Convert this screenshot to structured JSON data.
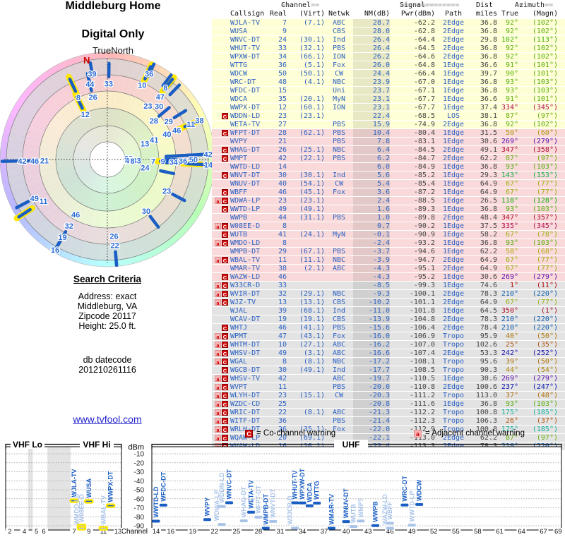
{
  "radar": {
    "title": "Middleburg Home",
    "subtitle": "Digital Only",
    "north_label": "TrueNorth",
    "magnetic_north_label": "N"
  },
  "criteria": {
    "heading": "Search Criteria",
    "lines": [
      "Address: exact",
      "Middleburg, VA",
      "Zipcode 20117",
      "Height: 25.0 ft."
    ],
    "datecode_label": "db datecode",
    "datecode": "201210261116",
    "link": "www.tvfool.com"
  },
  "table": {
    "group_headers": {
      "channel": "==Channel==",
      "signal": "========Signal========",
      "dist": "Dist",
      "azimuth": "==Azimuth=="
    },
    "columns": {
      "callsign": "Callsign",
      "real": "Real",
      "virt": "(Virt)",
      "netwk": "Netwk",
      "nm": "NM(dB)",
      "pwr": "Pwr(dBm)",
      "path": "Path",
      "miles": "miles",
      "true": "True",
      "magn": "(Magn)"
    }
  },
  "legend": {
    "c_symbol": "C",
    "c_label": "= Co-channel warning",
    "a_symbol": "a",
    "a_label": "= Adjacent channel warning"
  },
  "chart": {
    "dbm_axis_label": "dBm",
    "channel_axis_label": "Channel",
    "band_labels": [
      "VHF Lo",
      "VHF Hi",
      "UHF"
    ],
    "dbm_ticks": [
      -10,
      -20,
      -30,
      -40,
      -50,
      -60,
      -70,
      -80,
      -90
    ],
    "vhf_ticks": [
      2,
      4,
      5,
      6,
      7,
      9,
      11,
      13
    ],
    "uhf_ticks": [
      14,
      16,
      19,
      22,
      25,
      28,
      31,
      34,
      37,
      40,
      43,
      46,
      49,
      52,
      55,
      58,
      61,
      64,
      67,
      69
    ]
  },
  "colors": {
    "station_blue": "#1a5ec4",
    "station_light_blue": "#a9c3e8",
    "vhf_highlight_yellow": "#ffe700",
    "warn_c_red": "#d40f0f",
    "warn_a_pink": "#f7b4b4",
    "row_strong_yellow": "#ffffd5",
    "row_mid_pink": "#f9d9d9",
    "row_weak_gray": "#e3e3e3",
    "link_blue": "#2222cc"
  },
  "chart_data": {
    "type": "scatter",
    "title": "",
    "xlabel": "Channel",
    "ylabel": "dBm",
    "ylim": [
      -90,
      -10
    ],
    "stations": [
      {
        "cs": "WJLA-TV",
        "real": 7,
        "virt": "(7.1)",
        "net": "ABC",
        "nm": 28.7,
        "pwr": -62.2,
        "path": "2Edge",
        "mi": 36.8,
        "az": 92,
        "magn": 102,
        "warn": ""
      },
      {
        "cs": "WUSA",
        "real": 9,
        "virt": "",
        "net": "CBS",
        "nm": 28.0,
        "pwr": -62.8,
        "path": "2Edge",
        "mi": 36.8,
        "az": 92,
        "magn": 102,
        "warn": ""
      },
      {
        "cs": "WNVC-DT",
        "real": 24,
        "virt": "(30.1)",
        "net": "Ind",
        "nm": 26.4,
        "pwr": -64.4,
        "path": "2Edge",
        "mi": 29.8,
        "az": 102,
        "magn": 113,
        "warn": ""
      },
      {
        "cs": "WHUT-TV",
        "real": 33,
        "virt": "(32.1)",
        "net": "PBS",
        "nm": 26.4,
        "pwr": -64.5,
        "path": "2Edge",
        "mi": 36.8,
        "az": 92,
        "magn": 102,
        "warn": ""
      },
      {
        "cs": "WPXW-DT",
        "real": 34,
        "virt": "(66.1)",
        "net": "ION",
        "nm": 26.2,
        "pwr": -64.6,
        "path": "2Edge",
        "mi": 36.8,
        "az": 92,
        "magn": 102,
        "warn": ""
      },
      {
        "cs": "WTTG",
        "real": 36,
        "virt": "(5.1)",
        "net": "Fox",
        "nm": 26.0,
        "pwr": -64.8,
        "path": "1Edge",
        "mi": 36.6,
        "az": 91,
        "magn": 101,
        "warn": ""
      },
      {
        "cs": "WDCW",
        "real": 50,
        "virt": "(50.1)",
        "net": "CW",
        "nm": 24.4,
        "pwr": -66.4,
        "path": "1Edge",
        "mi": 39.7,
        "az": 90,
        "magn": 101,
        "warn": ""
      },
      {
        "cs": "WRC-DT",
        "real": 48,
        "virt": "(4.1)",
        "net": "NBC",
        "nm": 23.9,
        "pwr": -67.0,
        "path": "1Edge",
        "mi": 36.8,
        "az": 93,
        "magn": 103,
        "warn": ""
      },
      {
        "cs": "WFDC-DT",
        "real": 15,
        "virt": "",
        "net": "Uni",
        "nm": 23.7,
        "pwr": -67.1,
        "path": "1Edge",
        "mi": 36.8,
        "az": 93,
        "magn": 103,
        "warn": ""
      },
      {
        "cs": "WDCA",
        "real": 35,
        "virt": "(20.1)",
        "net": "MyN",
        "nm": 23.1,
        "pwr": -67.7,
        "path": "1Edge",
        "mi": 36.6,
        "az": 91,
        "magn": 101,
        "warn": ""
      },
      {
        "cs": "WWPX-DT",
        "real": 12,
        "virt": "(60.1)",
        "net": "ION",
        "nm": 23.1,
        "pwr": -67.7,
        "path": "1Edge",
        "mi": 37.4,
        "az": 334,
        "magn": 345,
        "warn": ""
      },
      {
        "cs": "WDDN-LD",
        "real": 23,
        "virt": "(23.1)",
        "net": "",
        "nm": 22.4,
        "pwr": -68.5,
        "path": "LOS",
        "mi": 38.1,
        "az": 87,
        "magn": 97,
        "warn": "C"
      },
      {
        "cs": "WETA-TV",
        "real": 27,
        "virt": "",
        "net": "PBS",
        "nm": 15.9,
        "pwr": -74.9,
        "path": "2Edge",
        "mi": 36.8,
        "az": 92,
        "magn": 102,
        "warn": ""
      },
      {
        "cs": "WFPT-DT",
        "real": 28,
        "virt": "(62.1)",
        "net": "PBS",
        "nm": 10.4,
        "pwr": -80.4,
        "path": "1Edge",
        "mi": 31.5,
        "az": 50,
        "magn": 60,
        "warn": "C"
      },
      {
        "cs": "WVPY",
        "real": 21,
        "virt": "",
        "net": "PBS",
        "nm": 7.8,
        "pwr": -83.1,
        "path": "1Edge",
        "mi": 30.6,
        "az": 269,
        "magn": 279,
        "warn": ""
      },
      {
        "cs": "WHAG-DT",
        "real": 26,
        "virt": "(25.1)",
        "net": "NBC",
        "nm": 6.4,
        "pwr": -84.5,
        "path": "2Edge",
        "mi": 49.1,
        "az": 347,
        "magn": 358,
        "warn": "C"
      },
      {
        "cs": "WMPT",
        "real": 42,
        "virt": "(22.1)",
        "net": "PBS",
        "nm": 6.2,
        "pwr": -84.7,
        "path": "2Edge",
        "mi": 62.2,
        "az": 87,
        "magn": 97,
        "warn": "C"
      },
      {
        "cs": "WWTD-LD",
        "real": 14,
        "virt": "",
        "net": "",
        "nm": 6.0,
        "pwr": -84.9,
        "path": "1Edge",
        "mi": 36.8,
        "az": 93,
        "magn": 103,
        "warn": ""
      },
      {
        "cs": "WNVT-DT",
        "real": 30,
        "virt": "(30.1)",
        "net": "Ind",
        "nm": 5.6,
        "pwr": -85.2,
        "path": "1Edge",
        "mi": 29.3,
        "az": 143,
        "magn": 153,
        "warn": "C"
      },
      {
        "cs": "WNUV-DT",
        "real": 40,
        "virt": "(54.1)",
        "net": "CW",
        "nm": 5.4,
        "pwr": -85.4,
        "path": "1Edge",
        "mi": 64.9,
        "az": 67,
        "magn": 77,
        "warn": ""
      },
      {
        "cs": "WBFF",
        "real": 46,
        "virt": "(45.1)",
        "net": "Fox",
        "nm": 3.6,
        "pwr": -87.2,
        "path": "1Edge",
        "mi": 64.9,
        "az": 67,
        "magn": 77,
        "warn": "C"
      },
      {
        "cs": "WDWA-LP",
        "real": 23,
        "virt": "(23.1)",
        "net": "",
        "nm": 2.4,
        "pwr": -88.5,
        "path": "1Edge",
        "mi": 26.5,
        "az": 118,
        "magn": 128,
        "warn": "aC"
      },
      {
        "cs": "WWTD-LP",
        "real": 49,
        "virt": "(49.1)",
        "net": "",
        "nm": 1.6,
        "pwr": -89.3,
        "path": "1Edge",
        "mi": 36.8,
        "az": 93,
        "magn": 103,
        "warn": "C"
      },
      {
        "cs": "WWPB",
        "real": 44,
        "virt": "(31.1)",
        "net": "PBS",
        "nm": 1.0,
        "pwr": -89.8,
        "path": "2Edge",
        "mi": 48.4,
        "az": 347,
        "magn": 357,
        "warn": ""
      },
      {
        "cs": "W08EE-D",
        "real": 8,
        "virt": "",
        "net": "",
        "nm": 0.7,
        "pwr": -90.2,
        "path": "1Edge",
        "mi": 37.5,
        "az": 335,
        "magn": 345,
        "warn": "aC"
      },
      {
        "cs": "WUTB",
        "real": 41,
        "virt": "(24.1)",
        "net": "MyN",
        "nm": -0.1,
        "pwr": -90.9,
        "path": "1Edge",
        "mi": 58.2,
        "az": 67,
        "magn": 78,
        "warn": "C"
      },
      {
        "cs": "WMDO-LD",
        "real": 8,
        "virt": "",
        "net": "",
        "nm": -2.4,
        "pwr": -93.2,
        "path": "1Edge",
        "mi": 36.8,
        "az": 93,
        "magn": 103,
        "warn": "aC"
      },
      {
        "cs": "WMPB-DT",
        "real": 29,
        "virt": "(67.1)",
        "net": "PBS",
        "nm": -3.7,
        "pwr": -94.6,
        "path": "1Edge",
        "mi": 62.2,
        "az": 58,
        "magn": 68,
        "warn": ""
      },
      {
        "cs": "WBAL-TV",
        "real": 11,
        "virt": "(11.1)",
        "net": "NBC",
        "nm": -3.9,
        "pwr": -94.7,
        "path": "2Edge",
        "mi": 64.9,
        "az": 67,
        "magn": 77,
        "warn": "aC"
      },
      {
        "cs": "WMAR-TV",
        "real": 38,
        "virt": "(2.1)",
        "net": "ABC",
        "nm": -4.3,
        "pwr": -95.1,
        "path": "2Edge",
        "mi": 64.9,
        "az": 67,
        "magn": 77,
        "warn": ""
      },
      {
        "cs": "WAZW-LD",
        "real": 46,
        "virt": "",
        "net": "",
        "nm": -4.3,
        "pwr": -95.2,
        "path": "1Edge",
        "mi": 30.6,
        "az": 269,
        "magn": 279,
        "warn": "C"
      },
      {
        "cs": "W33CR-D",
        "real": 33,
        "virt": "",
        "net": "",
        "nm": -8.5,
        "pwr": -99.3,
        "path": "1Edge",
        "mi": 74.6,
        "az": 1,
        "magn": 11,
        "warn": "aC"
      },
      {
        "cs": "WVIR-DT",
        "real": 32,
        "virt": "(29.1)",
        "net": "NBC",
        "nm": -9.3,
        "pwr": -100.1,
        "path": "2Edge",
        "mi": 78.3,
        "az": 210,
        "magn": 220,
        "warn": "aC"
      },
      {
        "cs": "WJZ-TV",
        "real": 13,
        "virt": "(13.1)",
        "net": "CBS",
        "nm": -10.2,
        "pwr": -101.1,
        "path": "2Edge",
        "mi": 64.9,
        "az": 67,
        "magn": 77,
        "warn": "aC"
      },
      {
        "cs": "WJAL",
        "real": 39,
        "virt": "(68.1)",
        "net": "Ind",
        "nm": -11.0,
        "pwr": -101.8,
        "path": "1Edge",
        "mi": 64.5,
        "az": 350,
        "magn": 1,
        "warn": ""
      },
      {
        "cs": "WCAV-DT",
        "real": 19,
        "virt": "(19.1)",
        "net": "CBS",
        "nm": -13.9,
        "pwr": -104.8,
        "path": "2Edge",
        "mi": 78.3,
        "az": 210,
        "magn": 220,
        "warn": ""
      },
      {
        "cs": "WHTJ",
        "real": 46,
        "virt": "(41.1)",
        "net": "PBS",
        "nm": -15.6,
        "pwr": -106.4,
        "path": "2Edge",
        "mi": 78.4,
        "az": 210,
        "magn": 220,
        "warn": "C"
      },
      {
        "cs": "WPMT",
        "real": 47,
        "virt": "(43.1)",
        "net": "Fox",
        "nm": -16.0,
        "pwr": -106.9,
        "path": "Tropo",
        "mi": 95.9,
        "az": 40,
        "magn": 50,
        "warn": "aC"
      },
      {
        "cs": "WHTM-DT",
        "real": 10,
        "virt": "(27.1)",
        "net": "ABC",
        "nm": -16.2,
        "pwr": -107.0,
        "path": "Tropo",
        "mi": 102.6,
        "az": 25,
        "magn": 35,
        "warn": "aC"
      },
      {
        "cs": "WHSV-DT",
        "real": 49,
        "virt": "(3.1)",
        "net": "ABC",
        "nm": -16.6,
        "pwr": -107.4,
        "path": "2Edge",
        "mi": 53.3,
        "az": 242,
        "magn": 252,
        "warn": "aC"
      },
      {
        "cs": "WGAL",
        "real": 8,
        "virt": "(8.1)",
        "net": "NBC",
        "nm": -17.2,
        "pwr": -108.1,
        "path": "Tropo",
        "mi": 95.6,
        "az": 39,
        "magn": 50,
        "warn": "aC"
      },
      {
        "cs": "WGCB-DT",
        "real": 30,
        "virt": "(49.1)",
        "net": "Ind",
        "nm": -17.7,
        "pwr": -108.5,
        "path": "Tropo",
        "mi": 90.3,
        "az": 44,
        "magn": 54,
        "warn": "C"
      },
      {
        "cs": "WHSV-TV",
        "real": 42,
        "virt": "",
        "net": "ABC",
        "nm": -19.7,
        "pwr": -110.5,
        "path": "1Edge",
        "mi": 30.6,
        "az": 269,
        "magn": 279,
        "warn": "aC"
      },
      {
        "cs": "WVPT",
        "real": 11,
        "virt": "",
        "net": "PBS",
        "nm": -20.0,
        "pwr": -110.8,
        "path": "2Edge",
        "mi": 100.6,
        "az": 237,
        "magn": 247,
        "warn": "aC"
      },
      {
        "cs": "WLYH-DT",
        "real": 23,
        "virt": "(15.1)",
        "net": "CW",
        "nm": -20.3,
        "pwr": -111.2,
        "path": "Tropo",
        "mi": 113.0,
        "az": 37,
        "magn": 48,
        "warn": "aC"
      },
      {
        "cs": "WZDC-CD",
        "real": 25,
        "virt": "",
        "net": "",
        "nm": -20.8,
        "pwr": -111.6,
        "path": "1Edge",
        "mi": 36.8,
        "az": 93,
        "magn": 103,
        "warn": "aC"
      },
      {
        "cs": "WRIC-DT",
        "real": 22,
        "virt": "(8.1)",
        "net": "ABC",
        "nm": -21.3,
        "pwr": -112.2,
        "path": "Tropo",
        "mi": 100.8,
        "az": 175,
        "magn": 185,
        "warn": "aC"
      },
      {
        "cs": "WITF-DT",
        "real": 36,
        "virt": "",
        "net": "PBS",
        "nm": -21.4,
        "pwr": -112.3,
        "path": "Tropo",
        "mi": 106.3,
        "az": 26,
        "magn": 37,
        "warn": "aC"
      },
      {
        "cs": "WRLH-DT",
        "real": 26,
        "virt": "(35.1)",
        "net": "Fox",
        "nm": -22.0,
        "pwr": -112.9,
        "path": "Tropo",
        "mi": 100.8,
        "az": 175,
        "magn": 185,
        "warn": "aC"
      },
      {
        "cs": "WQAW-LP",
        "real": 20,
        "virt": "(69.1)",
        "net": "",
        "nm": -22.1,
        "pwr": -113.0,
        "path": "2Edge",
        "mi": 62.2,
        "az": 87,
        "magn": 97,
        "warn": "aC"
      },
      {
        "cs": "WVAW-LD",
        "real": 16,
        "virt": "(16.1)",
        "net": "ABC",
        "nm": -22.4,
        "pwr": -113.3,
        "path": "2Edge",
        "mi": 78.3,
        "az": 210,
        "magn": 220,
        "warn": "aC"
      }
    ]
  }
}
